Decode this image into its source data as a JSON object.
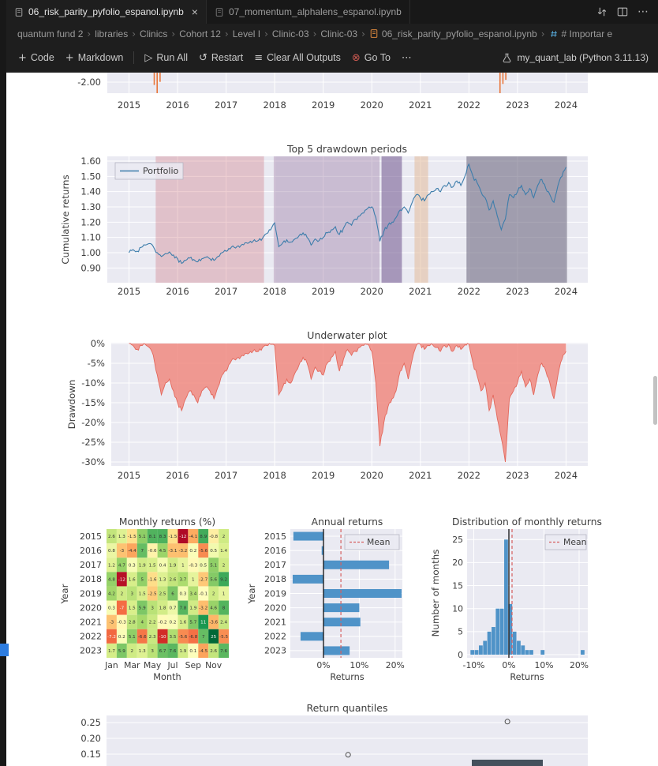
{
  "window": {
    "tabs": [
      {
        "label": "06_risk_parity_pyfolio_espanol.ipynb",
        "active": true
      },
      {
        "label": "07_momentum_alphalens_espanol.ipynb",
        "active": false
      }
    ],
    "tab_action_icons": [
      "split-cells-icon",
      "split-editor-icon",
      "more-actions-icon"
    ]
  },
  "glyphs": {
    "close": "×",
    "crumb-sep": "›",
    "plus": "+",
    "run-all": "▷",
    "restart": "↺",
    "clear-outputs": "≡",
    "goto": "⊗",
    "more": "⋯"
  },
  "breadcrumbs": [
    "quantum fund 2",
    "libraries",
    "Clinics",
    "Cohort 12",
    "Level I",
    "Clinic-03",
    "Clinic-03",
    "06_risk_parity_pyfolio_espanol.ipynb",
    "# Importar e"
  ],
  "toolbar": {
    "buttons": [
      {
        "glyph": "plus",
        "label": "Code",
        "name": "add-code-cell-button"
      },
      {
        "glyph": "plus",
        "label": "Markdown",
        "name": "add-markdown-cell-button",
        "divider_after": true
      },
      {
        "glyph": "run-all",
        "label": "Run All",
        "name": "run-all-button"
      },
      {
        "glyph": "restart",
        "label": "Restart",
        "name": "restart-kernel-button"
      },
      {
        "glyph": "clear-outputs",
        "label": "Clear All Outputs",
        "name": "clear-all-outputs-button"
      },
      {
        "glyph": "goto",
        "label": "Go To",
        "name": "go-to-button",
        "glyph_color": "#cf5b52"
      },
      {
        "glyph": "more",
        "label": "",
        "name": "toolbar-more-button"
      }
    ],
    "kernel": "my_quant_lab (Python 3.11.13)"
  },
  "chart_data": [
    {
      "id": "daily_returns_partial",
      "type": "line",
      "ytick": "-2.00",
      "xticks": [
        2015,
        2016,
        2017,
        2018,
        2019,
        2020,
        2021,
        2022,
        2023,
        2024
      ],
      "spikes": [
        {
          "year": 2015.52,
          "frac": 0.6
        },
        {
          "year": 2015.58,
          "frac": 1.0
        },
        {
          "year": 2015.64,
          "frac": 0.45
        },
        {
          "year": 2022.64,
          "frac": 1.0
        },
        {
          "year": 2022.7,
          "frac": 0.55
        },
        {
          "year": 2022.76,
          "frac": 0.35
        }
      ],
      "spike_color": "#e8763b"
    },
    {
      "id": "drawdown_periods",
      "type": "line",
      "title": "Top 5 drawdown periods",
      "ylabel": "Cumulative returns",
      "legend": "Portfolio",
      "yticks": [
        1.6,
        1.5,
        1.4,
        1.3,
        1.2,
        1.1,
        1.0,
        0.9
      ],
      "xticks": [
        2015,
        2016,
        2017,
        2018,
        2019,
        2020,
        2021,
        2022,
        2023,
        2024
      ],
      "x_start_year": 2015,
      "x_step": "monthly",
      "line_color": "#3d7dab",
      "series": [
        1.0,
        1.02,
        1.01,
        1.035,
        1.05,
        1.06,
        1.04,
        1.0,
        0.975,
        0.995,
        1.005,
        0.985,
        0.96,
        0.93,
        0.95,
        0.965,
        0.955,
        0.94,
        0.96,
        0.97,
        0.96,
        0.95,
        0.975,
        1.0,
        1.01,
        1.025,
        1.035,
        1.045,
        1.055,
        1.065,
        1.075,
        1.085,
        1.08,
        1.095,
        1.125,
        1.15,
        1.195,
        1.04,
        1.065,
        1.085,
        1.07,
        1.09,
        1.11,
        1.13,
        1.1,
        1.05,
        1.09,
        1.08,
        1.1,
        1.13,
        1.15,
        1.17,
        1.12,
        1.16,
        1.2,
        1.18,
        1.22,
        1.24,
        1.26,
        1.29,
        1.3,
        1.23,
        1.075,
        1.14,
        1.18,
        1.2,
        1.23,
        1.28,
        1.3,
        1.26,
        1.33,
        1.38,
        1.36,
        1.34,
        1.38,
        1.4,
        1.42,
        1.4,
        1.44,
        1.46,
        1.43,
        1.47,
        1.44,
        1.5,
        1.58,
        1.5,
        1.46,
        1.4,
        1.36,
        1.28,
        1.34,
        1.24,
        1.15,
        1.22,
        1.38,
        1.36,
        1.4,
        1.44,
        1.38,
        1.42,
        1.36,
        1.44,
        1.48,
        1.42,
        1.38,
        1.33,
        1.44,
        1.5,
        1.56
      ],
      "drawdown_bands": [
        {
          "x0": 2015.55,
          "x1": 2017.78,
          "color": "rgba(203,101,108,0.30)"
        },
        {
          "x0": 2017.98,
          "x1": 2020.16,
          "color": "rgba(148,112,158,0.38)"
        },
        {
          "x0": 2020.2,
          "x1": 2020.62,
          "color": "rgba(110,82,140,0.55)"
        },
        {
          "x0": 2020.88,
          "x1": 2021.16,
          "color": "rgba(226,182,146,0.50)"
        },
        {
          "x0": 2021.95,
          "x1": 2024.02,
          "color": "rgba(98,92,118,0.55)"
        }
      ]
    },
    {
      "id": "underwater",
      "type": "area",
      "title": "Underwater plot",
      "ylabel": "Drawdown",
      "yticks": [
        "0%",
        "-5%",
        "-10%",
        "-15%",
        "-20%",
        "-25%",
        "-30%"
      ],
      "xticks": [
        2015,
        2016,
        2017,
        2018,
        2019,
        2020,
        2021,
        2022,
        2023,
        2024
      ],
      "x_start_year": 2015,
      "x_step": "monthly",
      "fill": "rgba(240,128,118,0.78)",
      "edge": "#e3685c",
      "values": [
        0,
        -0.5,
        -1.5,
        -0.5,
        -0.2,
        -1,
        -3,
        -8,
        -13,
        -10,
        -9,
        -12,
        -15,
        -17,
        -14,
        -12,
        -13,
        -15,
        -12,
        -11,
        -12,
        -14,
        -11,
        -8,
        -7,
        -5,
        -4,
        -3.5,
        -3,
        -2.5,
        -2,
        -1.5,
        -2,
        -1,
        -0.5,
        -0.2,
        -0.5,
        -13,
        -11,
        -9,
        -10,
        -7.5,
        -5.5,
        -3.5,
        -5,
        -9,
        -6,
        -7,
        -8,
        -5,
        -3.5,
        -2,
        -7,
        -4,
        -1.5,
        -3,
        -2,
        -1,
        -0.5,
        -0.2,
        -2,
        -10,
        -26,
        -20,
        -16,
        -14,
        -12,
        -7,
        -5,
        -9,
        -4,
        -0.5,
        -0.2,
        -1.5,
        -0.5,
        -0.3,
        -1,
        -2,
        -0.5,
        -0.2,
        -2,
        -0.5,
        -1.5,
        -0.3,
        -0.2,
        -5,
        -8,
        -12,
        -10,
        -17,
        -13,
        -19,
        -24,
        -30,
        -14,
        -12,
        -10,
        -7,
        -11,
        -9,
        -13,
        -8,
        -5,
        -7,
        -10,
        -14,
        -8,
        -4,
        -2
      ]
    },
    {
      "id": "monthly_heatmap",
      "type": "heatmap",
      "title": "Monthly returns (%)",
      "xlabel": "Month",
      "ylabel": "Year",
      "shown_month_labels": [
        "Jan",
        "Mar",
        "May",
        "Jul",
        "Sep",
        "Nov"
      ],
      "years": [
        2015,
        2016,
        2017,
        2018,
        2019,
        2020,
        2021,
        2022,
        2023
      ],
      "values": [
        [
          2.6,
          1.3,
          -1.5,
          5.1,
          8.1,
          8.3,
          -1.5,
          -12.4,
          -4.1,
          8.9,
          -0.8,
          2.0
        ],
        [
          0.8,
          -3.0,
          -4.4,
          7.0,
          -0.6,
          4.5,
          -3.1,
          -3.2,
          0.2,
          -5.6,
          0.5,
          1.4
        ],
        [
          1.2,
          4.7,
          0.3,
          1.9,
          1.5,
          0.4,
          1.9,
          1.0,
          -0.3,
          0.5,
          5.1,
          2.0
        ],
        [
          4.8,
          -12.0,
          1.6,
          5.0,
          -1.6,
          1.3,
          2.6,
          3.7,
          1.0,
          -2.7,
          5.6,
          9.2
        ],
        [
          4.2,
          2.0,
          3.0,
          1.5,
          -2.5,
          2.5,
          6.0,
          0.3,
          3.4,
          -0.1,
          2.0,
          1.0
        ],
        [
          0.3,
          -7.0,
          1.5,
          5.9,
          3.0,
          1.8,
          0.7,
          7.8,
          1.9,
          -3.2,
          4.6,
          8.0
        ],
        [
          -3.0,
          -0.3,
          2.8,
          4.0,
          2.2,
          -0.2,
          0.2,
          1.6,
          5.7,
          11.0,
          -3.6,
          2.4
        ],
        [
          -7.2,
          0.2,
          5.1,
          -6.6,
          2.3,
          -10.3,
          3.5,
          -5.6,
          -6.8,
          7.0,
          25.0,
          -5.5
        ],
        [
          1.7,
          5.9,
          2.0,
          1.3,
          3.0,
          6.7,
          7.6,
          1.9,
          0.1,
          -4.5,
          2.6,
          7.6
        ]
      ]
    },
    {
      "id": "annual_returns",
      "type": "bar-h",
      "title": "Annual returns",
      "xlabel": "Returns",
      "ylabel": "Year",
      "xticks": [
        "0%",
        "10%",
        "20%"
      ],
      "legend": "Mean",
      "years": [
        2015,
        2016,
        2017,
        2018,
        2019,
        2020,
        2021,
        2022,
        2023
      ],
      "values": [
        -8.4,
        -0.5,
        18.3,
        -8.6,
        21.8,
        10.0,
        10.3,
        -6.4,
        7.3
      ],
      "bar_color": "#4f93c8",
      "mean_color": "#d65f5f"
    },
    {
      "id": "monthly_distribution",
      "type": "histogram",
      "title": "Distribution of monthly returns",
      "xlabel": "Returns",
      "ylabel": "Number of months",
      "yticks": [
        0,
        5,
        10,
        15,
        20,
        25
      ],
      "xticks": [
        "-10%",
        "0%",
        "10%",
        "20%"
      ],
      "legend": "Mean",
      "mean": 0.9,
      "bar_color": "#4f93c8",
      "mean_color": "#d65f5f",
      "bars": [
        {
          "x": -10.4,
          "h": 1
        },
        {
          "x": -9.2,
          "h": 1
        },
        {
          "x": -8.0,
          "h": 2
        },
        {
          "x": -6.8,
          "h": 3
        },
        {
          "x": -5.6,
          "h": 5
        },
        {
          "x": -4.4,
          "h": 6
        },
        {
          "x": -3.2,
          "h": 10
        },
        {
          "x": -2.0,
          "h": 10
        },
        {
          "x": -0.8,
          "h": 25
        },
        {
          "x": 0.4,
          "h": 11
        },
        {
          "x": 1.6,
          "h": 5
        },
        {
          "x": 2.8,
          "h": 3
        },
        {
          "x": 4.0,
          "h": 2
        },
        {
          "x": 5.2,
          "h": 1
        },
        {
          "x": 6.4,
          "h": 1
        },
        {
          "x": 9.6,
          "h": 1
        },
        {
          "x": 21.0,
          "h": 1
        }
      ]
    },
    {
      "id": "return_quantiles",
      "type": "box",
      "title": "Return quantiles",
      "yticks": [
        "0.25",
        "0.20",
        "0.15"
      ],
      "outliers": [
        {
          "x_frac": 0.833,
          "value": 0.253
        },
        {
          "x_frac": 0.502,
          "value": 0.148
        }
      ],
      "box_color": "#44505c"
    }
  ]
}
